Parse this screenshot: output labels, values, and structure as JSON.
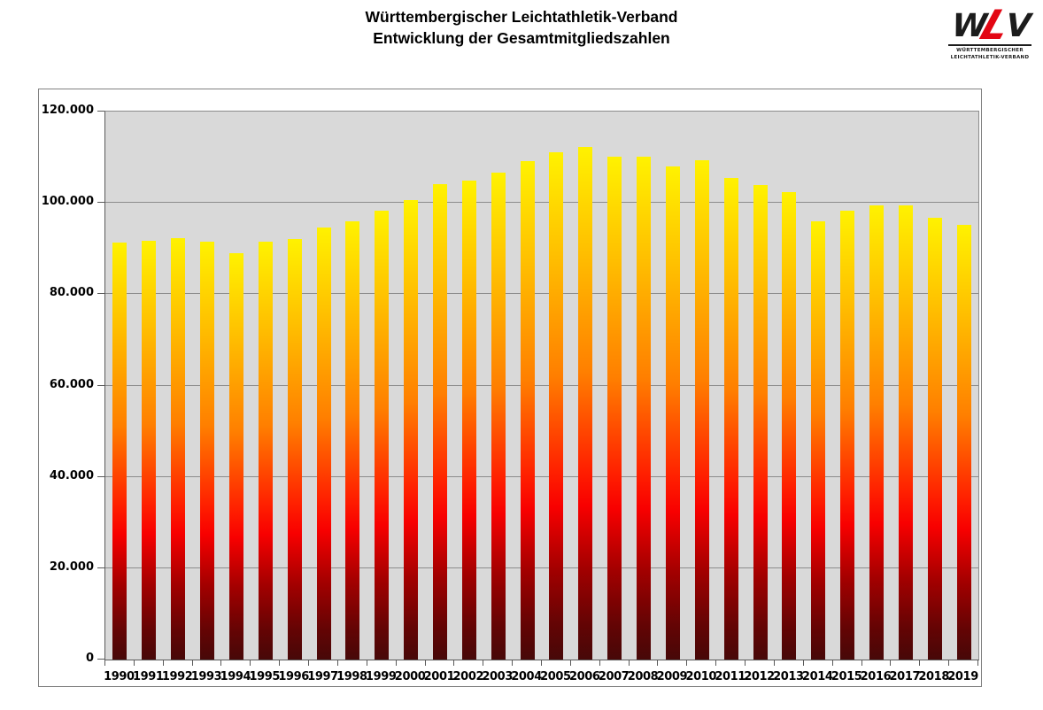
{
  "header": {
    "title_line1": "Württembergischer Leichtathletik-Verband",
    "title_line2": "Entwicklung der Gesamtmitgliedszahlen"
  },
  "logo": {
    "letter_w": "W",
    "letter_l": "L",
    "letter_v": "V",
    "caption_line1": "WÜRTTEMBERGISCHER",
    "caption_line2": "LEICHTATHLETIK-VERBAND",
    "red": "#E30613"
  },
  "chart_data": {
    "type": "bar",
    "title": "Württembergischer Leichtathletik-Verband",
    "subtitle": "Entwicklung der Gesamtmitgliedszahlen",
    "categories": [
      "1990",
      "1991",
      "1992",
      "1993",
      "1994",
      "1995",
      "1996",
      "1997",
      "1998",
      "1999",
      "2000",
      "2001",
      "2002",
      "2003",
      "2004",
      "2005",
      "2006",
      "2007",
      "2008",
      "2009",
      "2010",
      "2011",
      "2012",
      "2013",
      "2014",
      "2015",
      "2016",
      "2017",
      "2018",
      "2019"
    ],
    "values": [
      91400,
      91700,
      92200,
      91500,
      89000,
      91500,
      92000,
      94700,
      95900,
      98200,
      100700,
      104100,
      104800,
      106700,
      109100,
      111100,
      112200,
      110100,
      110100,
      108000,
      109300,
      105400,
      103900,
      102400,
      95900,
      98300,
      99500,
      99500,
      96700,
      95100
    ],
    "xlabel": "",
    "ylabel": "",
    "ylim": [
      0,
      120000
    ],
    "ytick_interval": 20000,
    "ytick_labels": [
      "0",
      "20.000",
      "40.000",
      "60.000",
      "80.000",
      "100.000",
      "120.000"
    ],
    "grid": true,
    "legend": false,
    "plot_background": "#D9D9D9",
    "gridline_color": "#8C8C8C",
    "axis_color": "#595959",
    "bar_gradient_stops": [
      [
        "#FFF200",
        0
      ],
      [
        "#FFC000",
        20
      ],
      [
        "#FF7F00",
        44
      ],
      [
        "#FF2000",
        63
      ],
      [
        "#F80000",
        70
      ],
      [
        "#A40000",
        82
      ],
      [
        "#640404",
        93
      ],
      [
        "#470808",
        100
      ]
    ]
  }
}
